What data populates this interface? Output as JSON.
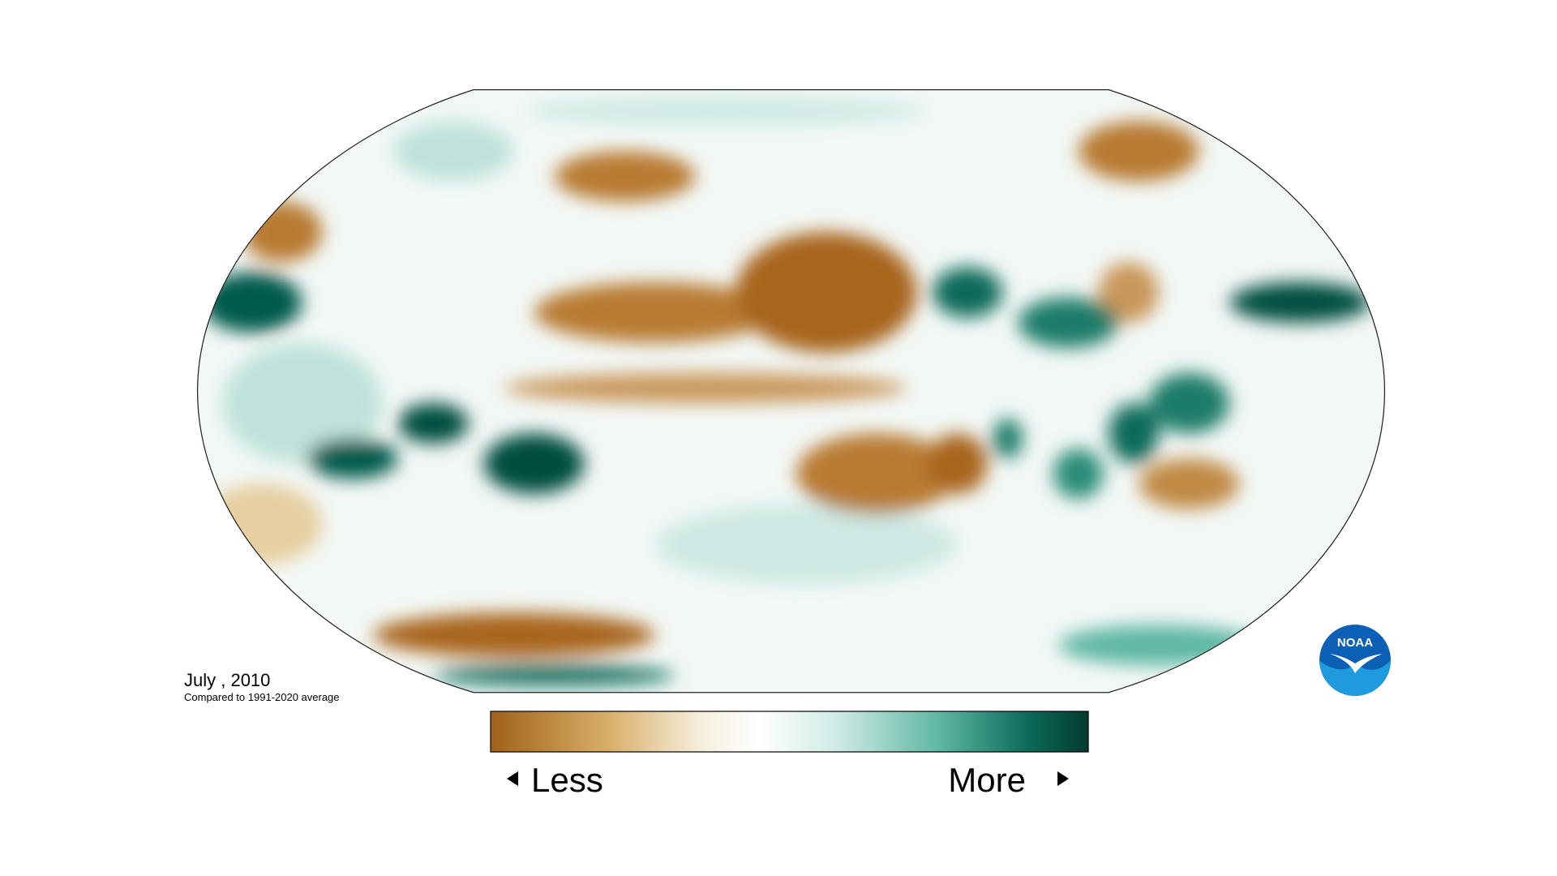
{
  "map": {
    "date": "July , 2010",
    "subtitle": "Compared to 1991-2020 average"
  },
  "legend": {
    "low": "Less",
    "high": "More"
  },
  "logo": {
    "text": "NOAA"
  }
}
